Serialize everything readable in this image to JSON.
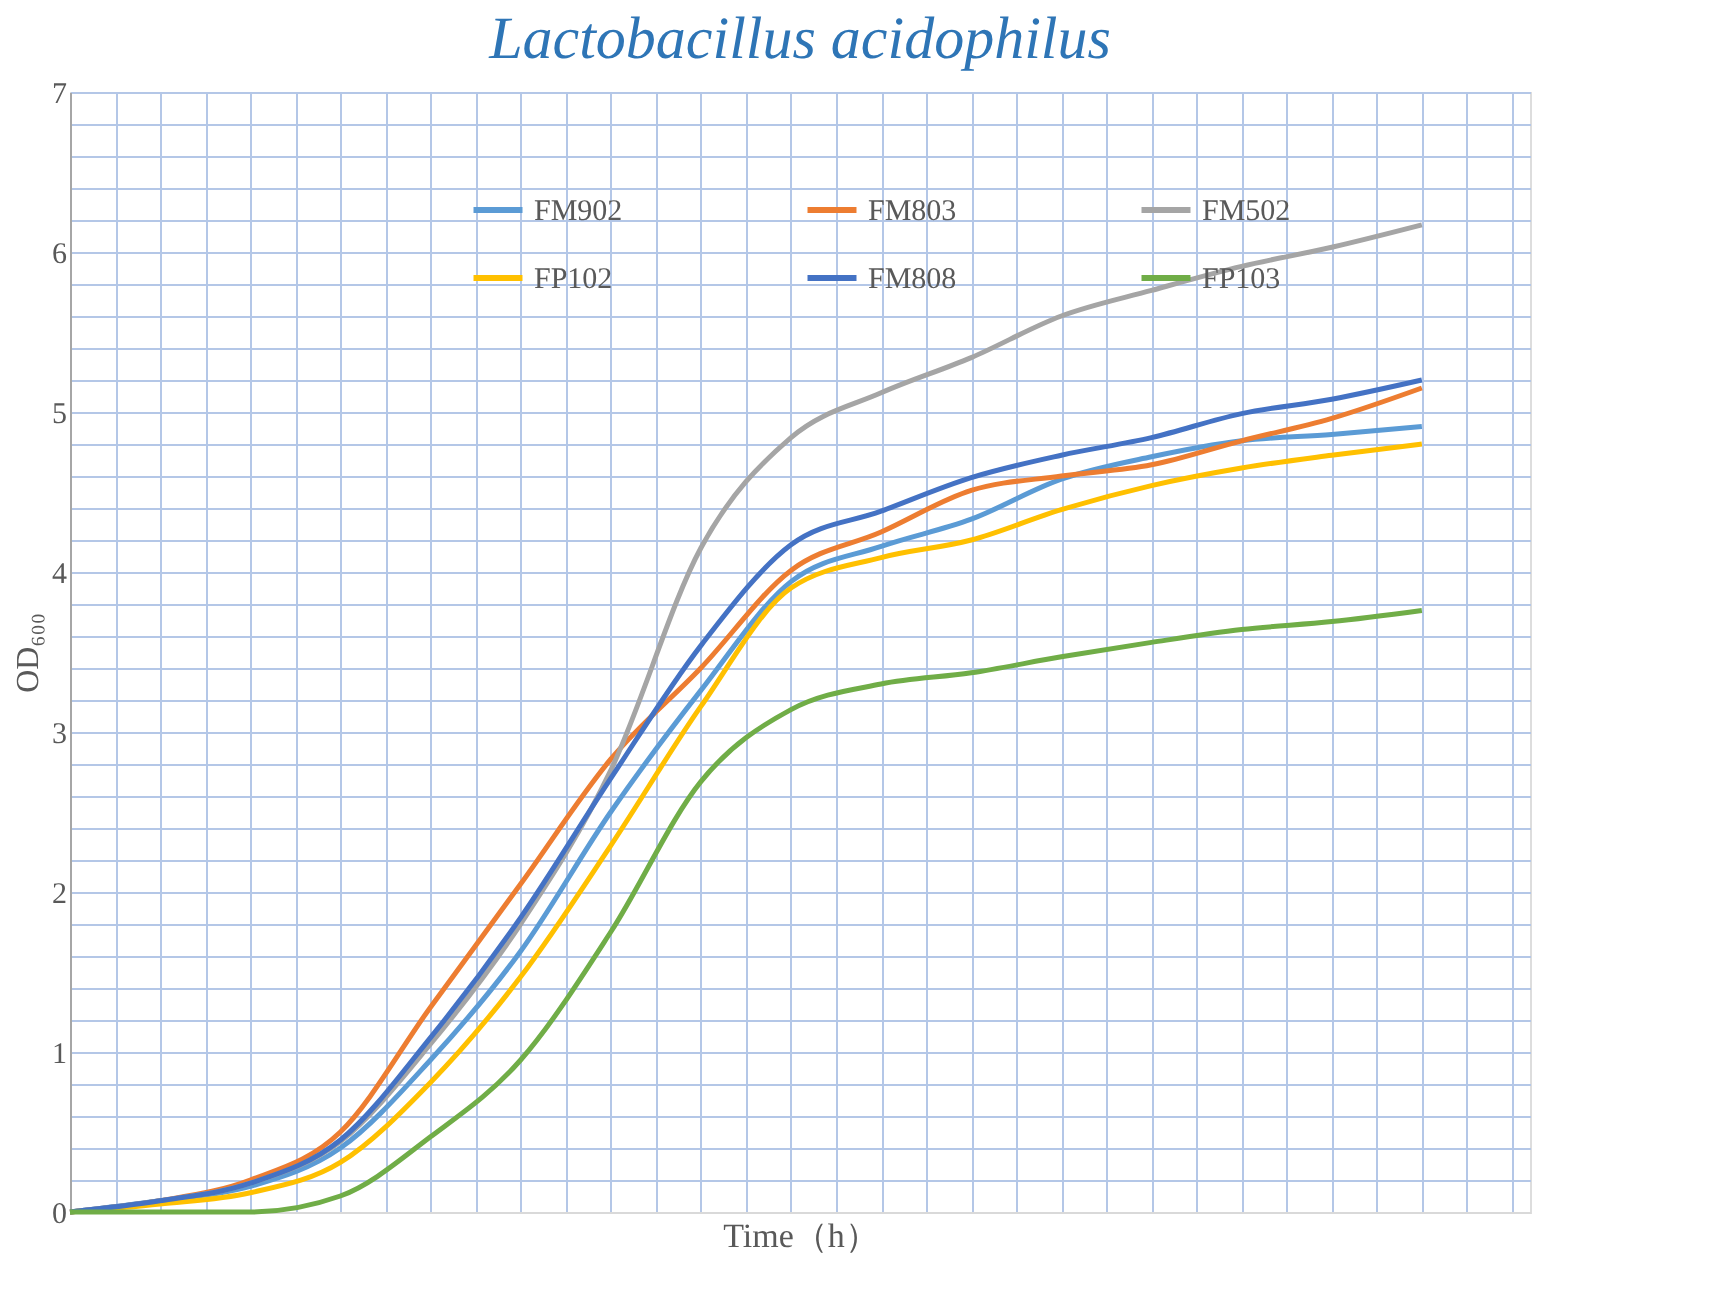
{
  "chart_data": {
    "type": "line",
    "title": "Lactobacillus acidophilus",
    "xlabel": "Time（h）",
    "ylabel": "OD₆₀₀",
    "categories": [
      null,
      null,
      null,
      null,
      null,
      null,
      null,
      null,
      null,
      null,
      null,
      null,
      null,
      null,
      null,
      null
    ],
    "series": [
      {
        "name": "FM902",
        "color": "#5b9bd5",
        "values": [
          0,
          0.07,
          0.16,
          0.4,
          0.95,
          1.63,
          2.5,
          3.26,
          3.94,
          4.16,
          4.33,
          4.58,
          4.72,
          4.82,
          4.86,
          4.91
        ]
      },
      {
        "name": "FM803",
        "color": "#ed7d31",
        "values": [
          0,
          0.07,
          0.2,
          0.5,
          1.28,
          2.05,
          2.83,
          3.4,
          4.01,
          4.25,
          4.51,
          4.6,
          4.67,
          4.82,
          4.96,
          5.15
        ]
      },
      {
        "name": "FM502",
        "color": "#a5a5a5",
        "values": [
          0,
          0.07,
          0.18,
          0.44,
          1.05,
          1.8,
          2.76,
          4.15,
          4.84,
          5.12,
          5.34,
          5.6,
          5.76,
          5.91,
          6.03,
          6.17
        ]
      },
      {
        "name": "FP102",
        "color": "#ffc000",
        "values": [
          0,
          0.05,
          0.12,
          0.31,
          0.81,
          1.47,
          2.29,
          3.16,
          3.9,
          4.09,
          4.2,
          4.39,
          4.54,
          4.65,
          4.73,
          4.8
        ]
      },
      {
        "name": "FM808",
        "color": "#4472c4",
        "values": [
          0,
          0.07,
          0.18,
          0.45,
          1.09,
          1.84,
          2.71,
          3.54,
          4.17,
          4.38,
          4.59,
          4.73,
          4.84,
          4.99,
          5.08,
          5.2
        ]
      },
      {
        "name": "FP103",
        "color": "#70ad47",
        "values": [
          0,
          0,
          0,
          0.1,
          0.47,
          0.95,
          1.75,
          2.69,
          3.14,
          3.3,
          3.37,
          3.47,
          3.56,
          3.64,
          3.69,
          3.76
        ]
      }
    ],
    "ylim": [
      0,
      7
    ],
    "yticks": [
      0,
      1,
      2,
      3,
      4,
      5,
      6,
      7
    ],
    "grid": true,
    "legend": "top",
    "tick_labels": "y",
    "line_style": "solid",
    "marker": "none"
  }
}
